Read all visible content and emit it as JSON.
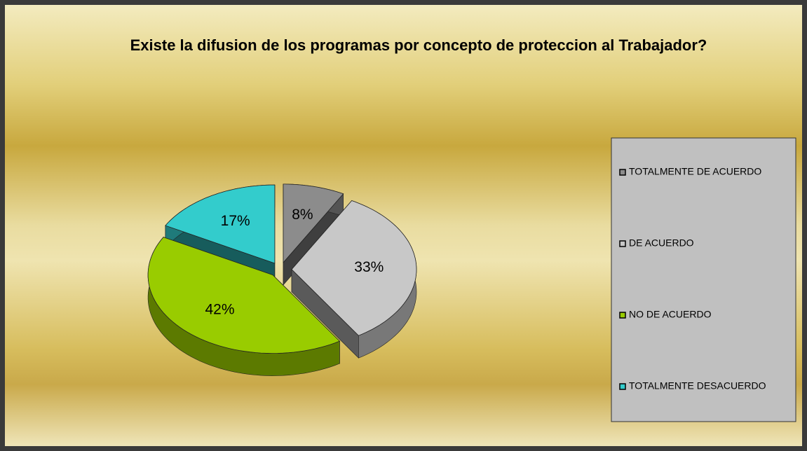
{
  "chart_data": {
    "type": "pie",
    "title": "Existe la difusion de los programas por concepto de proteccion al Trabajador?",
    "categories": [
      "TOTALMENTE DE ACUERDO",
      "DE ACUERDO",
      "NO DE ACUERDO",
      "TOTALMENTE DESACUERDO"
    ],
    "values": [
      8,
      33,
      42,
      17
    ],
    "value_labels": [
      "8%",
      "33%",
      "42%",
      "17%"
    ],
    "colors": [
      "#8c8c8c",
      "#c8c8c8",
      "#99cc00",
      "#33cccc"
    ],
    "legend": "right"
  }
}
